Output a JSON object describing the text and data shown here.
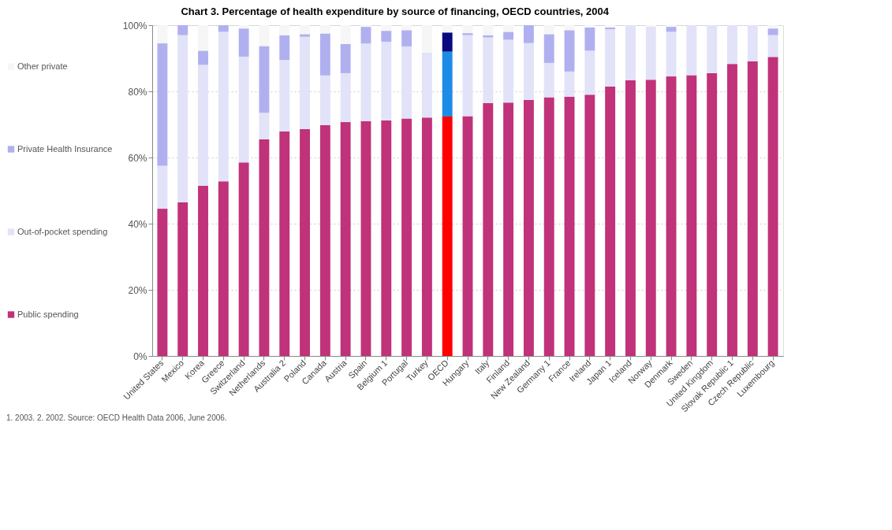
{
  "chart_data": {
    "type": "bar",
    "stacked": true,
    "title": "Chart 3. Percentage of health expenditure by source of financing, OECD countries, 2004",
    "categories": [
      "United States",
      "Mexico",
      "Korea",
      "Greece",
      "Switzerland",
      "Netherlands",
      "Australia 2",
      "Poland",
      "Canada",
      "Austria",
      "Spain",
      "Belgium 1",
      "Portugal",
      "Turkey",
      "OECD",
      "Hungary",
      "Italy",
      "Finland",
      "New Zealand",
      "Germany 1",
      "France",
      "Ireland",
      "Japan 1",
      "Iceland",
      "Norway",
      "Denmark",
      "Sweden",
      "United Kingdom",
      "Slovak Republic 1",
      "Czech Republic",
      "Luxembourg"
    ],
    "series": [
      {
        "name": "Public spending",
        "color": "#c0327a",
        "colors": [
          "#c0327a",
          "#c0327a",
          "#c0327a",
          "#c0327a",
          "#c0327a",
          "#c0327a",
          "#c0327a",
          "#c0327a",
          "#c0327a",
          "#c0327a",
          "#c0327a",
          "#c0327a",
          "#c0327a",
          "#c0327a",
          "#ff0000",
          "#c0327a",
          "#c0327a",
          "#c0327a",
          "#c0327a",
          "#c0327a",
          "#c0327a",
          "#c0327a",
          "#c0327a",
          "#c0327a",
          "#c0327a",
          "#c0327a",
          "#c0327a",
          "#c0327a",
          "#c0327a",
          "#c0327a",
          "#c0327a"
        ],
        "values": [
          44.5,
          46.4,
          51.4,
          52.8,
          58.5,
          65.5,
          67.9,
          68.6,
          69.8,
          70.7,
          71.0,
          71.2,
          71.8,
          72.1,
          72.4,
          72.5,
          76.4,
          76.6,
          77.4,
          78.2,
          78.4,
          79.0,
          81.5,
          83.4,
          83.5,
          84.5,
          84.9,
          85.5,
          88.3,
          89.1,
          90.4
        ]
      },
      {
        "name": "Out-of-pocket spending",
        "color": "#e2e2f8",
        "colors": [
          "#e2e2f8",
          "#e2e2f8",
          "#e2e2f8",
          "#e2e2f8",
          "#e2e2f8",
          "#e2e2f8",
          "#e2e2f8",
          "#e2e2f8",
          "#e2e2f8",
          "#e2e2f8",
          "#e2e2f8",
          "#e2e2f8",
          "#e2e2f8",
          "#e2e2f8",
          "#1e8ce6",
          "#e2e2f8",
          "#e2e2f8",
          "#e2e2f8",
          "#e2e2f8",
          "#e2e2f8",
          "#e2e2f8",
          "#e2e2f8",
          "#e2e2f8",
          "#e2e2f8",
          "#e2e2f8",
          "#e2e2f8",
          "#e2e2f8",
          "#e2e2f8",
          "#e2e2f8",
          "#e2e2f8",
          "#e2e2f8"
        ],
        "values": [
          13.0,
          50.6,
          36.6,
          45.2,
          32.0,
          8.0,
          21.6,
          27.9,
          15.0,
          14.8,
          23.5,
          23.8,
          21.8,
          19.6,
          19.6,
          24.5,
          19.9,
          19.0,
          17.2,
          10.4,
          7.6,
          13.3,
          17.3,
          16.6,
          16.0,
          13.5,
          15.1,
          14.5,
          11.7,
          10.9,
          6.6
        ]
      },
      {
        "name": "Private Health Insurance",
        "color": "#b0b0f0",
        "colors": [
          "#b0b0f0",
          "#b0b0f0",
          "#b0b0f0",
          "#b0b0f0",
          "#b0b0f0",
          "#b0b0f0",
          "#b0b0f0",
          "#b0b0f0",
          "#b0b0f0",
          "#b0b0f0",
          "#b0b0f0",
          "#b0b0f0",
          "#b0b0f0",
          "#b0b0f0",
          "#0a0a80",
          "#b0b0f0",
          "#b0b0f0",
          "#b0b0f0",
          "#b0b0f0",
          "#b0b0f0",
          "#b0b0f0",
          "#b0b0f0",
          "#b0b0f0",
          "#b0b0f0",
          "#b0b0f0",
          "#b0b0f0",
          "#b0b0f0",
          "#b0b0f0",
          "#b0b0f0",
          "#b0b0f0",
          "#b0b0f0"
        ],
        "values": [
          37.0,
          3.0,
          4.3,
          2.0,
          8.5,
          20.2,
          7.5,
          0.8,
          12.7,
          8.8,
          5.0,
          3.3,
          4.9,
          0.0,
          5.8,
          0.6,
          0.7,
          2.4,
          5.4,
          8.7,
          12.5,
          7.0,
          0.5,
          0.0,
          0.0,
          1.5,
          0.0,
          0.0,
          0.0,
          0.0,
          2.0
        ]
      },
      {
        "name": "Other private",
        "color": "#f6f6f6",
        "values": [
          5.5,
          0.0,
          7.7,
          0.0,
          1.0,
          6.3,
          3.0,
          2.7,
          2.5,
          5.7,
          0.5,
          1.7,
          1.5,
          8.3,
          2.2,
          2.4,
          3.0,
          2.0,
          0.0,
          2.7,
          1.5,
          0.7,
          0.7,
          0.0,
          0.5,
          0.5,
          0.0,
          0.0,
          0.0,
          0.0,
          1.0
        ]
      }
    ],
    "ylim": [
      0,
      100
    ],
    "yticks": [
      {
        "value": 0,
        "label": "0%"
      },
      {
        "value": 20,
        "label": "20%"
      },
      {
        "value": 40,
        "label": "40%"
      },
      {
        "value": 60,
        "label": "60%"
      },
      {
        "value": 80,
        "label": "80%"
      },
      {
        "value": 100,
        "label": "100%"
      }
    ],
    "grid": "y",
    "legend": "left",
    "annotations": [
      "1. 2003.  2. 2002.  Source: OECD Health Data 2006, June 2006."
    ]
  }
}
